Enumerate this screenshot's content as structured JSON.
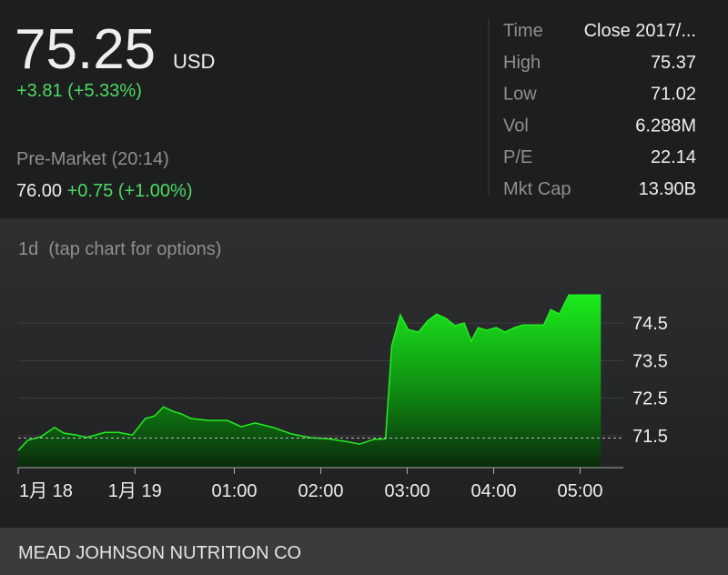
{
  "quote": {
    "price": "75.25",
    "currency": "USD",
    "change": "+3.81 (+5.33%)",
    "pre_market_label": "Pre-Market (20:14)",
    "pre_market_price": "76.00",
    "pre_market_change": "+0.75 (+1.00%)"
  },
  "stats": [
    {
      "label": "Time",
      "value": "Close 2017/..."
    },
    {
      "label": "High",
      "value": "75.37"
    },
    {
      "label": "Low",
      "value": "71.02"
    },
    {
      "label": "Vol",
      "value": "6.288M"
    },
    {
      "label": "P/E",
      "value": "22.14"
    },
    {
      "label": "Mkt Cap",
      "value": "13.90B"
    }
  ],
  "chart_hint": "1d  (tap chart for options)",
  "chart_data": {
    "type": "area",
    "color": "#22ee22",
    "x": [
      0,
      1.1,
      2.6,
      4.2,
      5.3,
      6.8,
      7.9,
      10,
      11.6,
      13.2,
      14.7,
      15.8,
      16.8,
      17.9,
      18.9,
      20,
      22.1,
      24.2,
      25.8,
      27.4,
      29.5,
      31.6,
      33.7,
      35.8,
      37.9,
      39.5,
      41.1,
      42.5,
      43.2,
      44.2,
      45.1,
      46.3,
      47.4,
      48.4,
      49.5,
      50.5,
      51.6,
      52.4,
      53.2,
      54.2,
      55.3,
      56.3,
      57.4,
      58.4,
      59.5,
      60.8,
      61.6,
      62.6,
      63.7,
      67.4
    ],
    "values": [
      71.11,
      71.38,
      71.47,
      71.72,
      71.57,
      71.52,
      71.45,
      71.59,
      71.59,
      71.52,
      71.96,
      72.03,
      72.27,
      72.15,
      72.08,
      71.96,
      71.91,
      71.91,
      71.74,
      71.84,
      71.72,
      71.55,
      71.45,
      71.42,
      71.35,
      71.28,
      71.4,
      71.42,
      73.89,
      74.72,
      74.33,
      74.26,
      74.57,
      74.74,
      74.62,
      74.43,
      74.5,
      74.02,
      74.38,
      74.31,
      74.38,
      74.26,
      74.38,
      74.45,
      74.45,
      74.45,
      74.86,
      74.74,
      75.25,
      75.25
    ],
    "previous_close": 71.44,
    "xlim": [
      0,
      70
    ],
    "ylim": [
      70.7,
      75.4
    ],
    "xticks": [
      {
        "value": 0,
        "label": "1月 18"
      },
      {
        "value": 13.5,
        "label": "1月 19"
      },
      {
        "value": 25,
        "label": "01:00"
      },
      {
        "value": 35,
        "label": "02:00"
      },
      {
        "value": 45,
        "label": "03:00"
      },
      {
        "value": 55,
        "label": "04:00"
      },
      {
        "value": 65,
        "label": "05:00"
      }
    ],
    "yticks": [
      71.5,
      72.5,
      73.5,
      74.5
    ],
    "grid": true
  },
  "footer": "MEAD JOHNSON NUTRITION CO"
}
